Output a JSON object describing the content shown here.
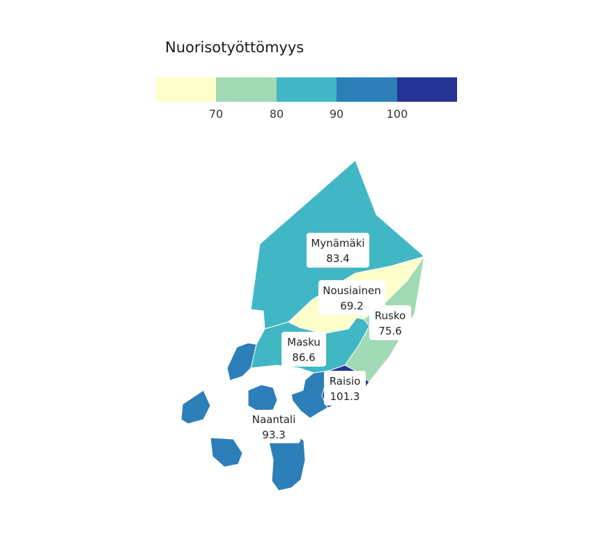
{
  "legend": {
    "title": "Nuorisotyöttömyys",
    "colors": [
      "#ffffcc",
      "#a1dab4",
      "#41b6c4",
      "#2c7fb8",
      "#253494"
    ],
    "ticks": [
      "70",
      "80",
      "90",
      "100"
    ]
  },
  "regions": [
    {
      "name": "Mynämäki",
      "value": "83.4",
      "color": "#41b6c4"
    },
    {
      "name": "Nousiainen",
      "value": "69.2",
      "color": "#ffffcc"
    },
    {
      "name": "Rusko",
      "value": "75.6",
      "color": "#a1dab4"
    },
    {
      "name": "Masku",
      "value": "86.6",
      "color": "#41b6c4"
    },
    {
      "name": "Raisio",
      "value": "101.3",
      "color": "#253494"
    },
    {
      "name": "Naantali",
      "value": "93.3",
      "color": "#2c7fb8"
    }
  ]
}
